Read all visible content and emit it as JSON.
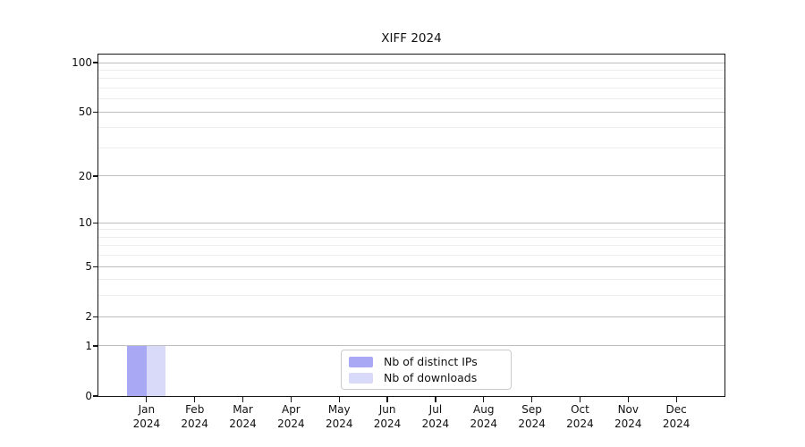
{
  "title": "XIFF 2024",
  "chart_data": {
    "type": "bar",
    "title": "XIFF 2024",
    "months": [
      "Jan",
      "Feb",
      "Mar",
      "Apr",
      "May",
      "Jun",
      "Jul",
      "Aug",
      "Sep",
      "Oct",
      "Nov",
      "Dec"
    ],
    "year": "2024",
    "series": [
      {
        "name": "Nb of distinct IPs",
        "color": "#a8a8f4",
        "values": [
          1,
          0,
          0,
          0,
          0,
          0,
          0,
          0,
          0,
          0,
          0,
          0
        ]
      },
      {
        "name": "Nb of downloads",
        "color": "#d9d9f9",
        "values": [
          1,
          0,
          0,
          0,
          0,
          0,
          0,
          0,
          0,
          0,
          0,
          0
        ]
      }
    ],
    "yscale": "symlog",
    "ylim": [
      0,
      112
    ],
    "y_major_ticks": [
      0,
      1,
      2,
      5,
      10,
      20,
      50,
      100
    ],
    "y_minor_gridlines": [
      3,
      4,
      6,
      7,
      8,
      9,
      30,
      40,
      60,
      70,
      80,
      90
    ],
    "grid": true,
    "legend_position": "inside-bottom-center",
    "bar_width_ratio": 0.4
  },
  "colors": {
    "background": "#ffffff",
    "axis": "#161616",
    "text": "#111111",
    "major_grid": "#bfbfbf",
    "minor_grid": "#ececec",
    "legend_border": "#cbcbcb"
  }
}
